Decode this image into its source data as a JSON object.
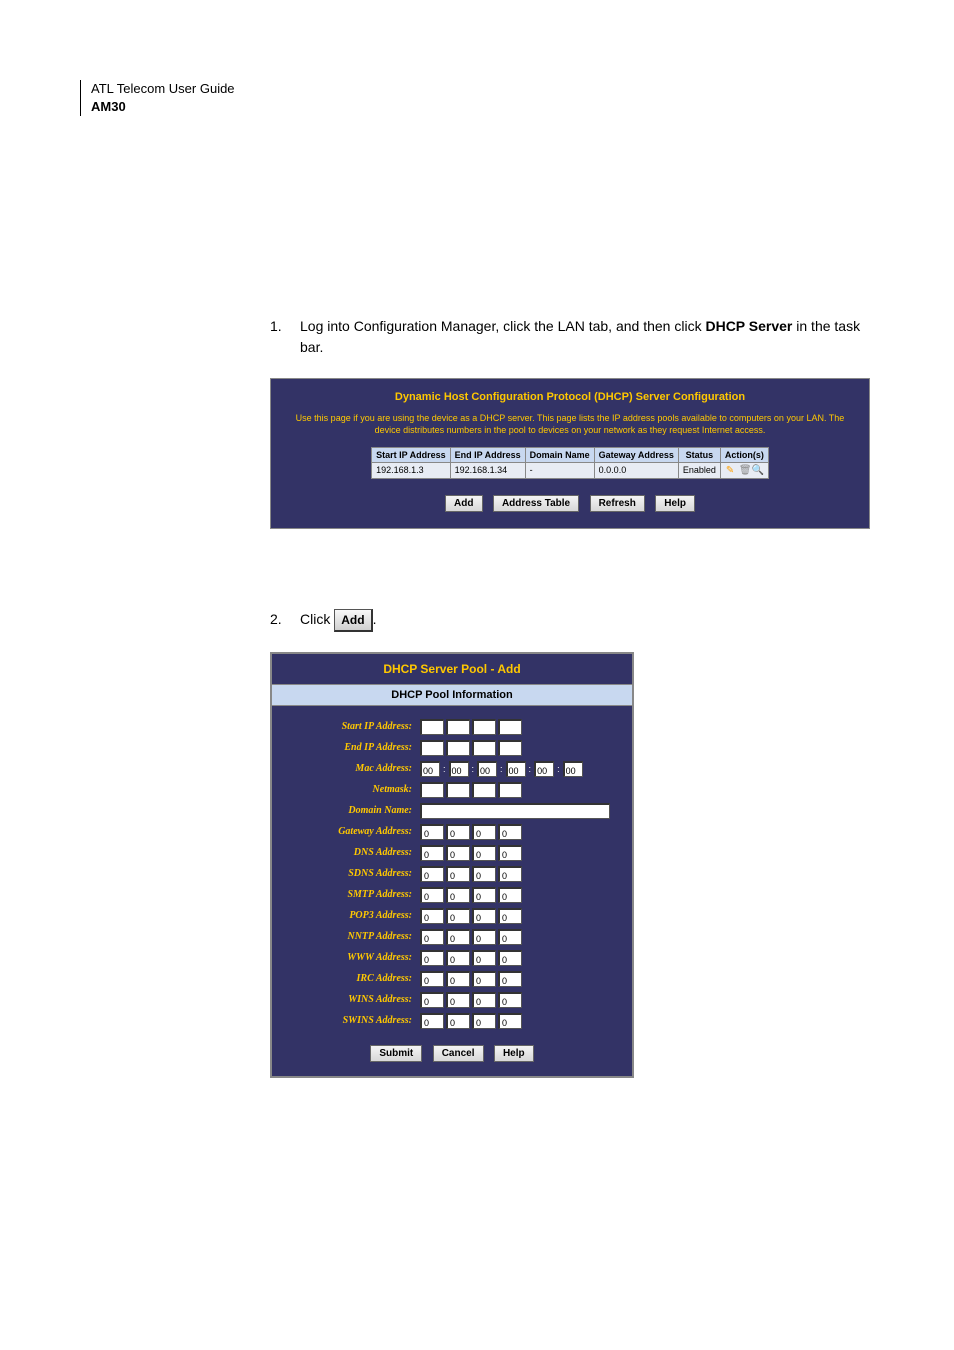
{
  "header": {
    "line1": "ATL Telecom User Guide",
    "line2": "AM30"
  },
  "step1": {
    "num": "1.",
    "text_pre": "Log into Configuration Manager, click the LAN tab, and then click ",
    "text_bold": "DHCP Server",
    "text_post": " in the task bar."
  },
  "shot1": {
    "title": "Dynamic Host Configuration Protocol (DHCP) Server Configuration",
    "desc": "Use this page if you are using the device as a DHCP server. This page lists the IP address pools available to computers on your LAN. The device distributes numbers in the pool to devices on your network as they request Internet access.",
    "cols": [
      "Start IP Address",
      "End IP Address",
      "Domain Name",
      "Gateway Address",
      "Status",
      "Action(s)"
    ],
    "row": [
      "192.168.1.3",
      "192.168.1.34",
      "-",
      "0.0.0.0",
      "Enabled"
    ],
    "buttons": [
      "Add",
      "Address Table",
      "Refresh",
      "Help"
    ]
  },
  "step2": {
    "num": "2.",
    "text_pre": "Click ",
    "add_label": "Add",
    "text_post": "."
  },
  "shot2": {
    "title": "DHCP Server Pool - Add",
    "subtitle": "DHCP Pool Information",
    "mac_val": "00",
    "zero": "0",
    "labels": {
      "start_ip": "Start IP Address:",
      "end_ip": "End IP Address:",
      "mac": "Mac Address:",
      "netmask": "Netmask:",
      "domain": "Domain Name:",
      "gateway": "Gateway Address:",
      "dns": "DNS Address:",
      "sdns": "SDNS Address:",
      "smtp": "SMTP Address:",
      "pop3": "POP3 Address:",
      "nntp": "NNTP Address:",
      "www": "WWW Address:",
      "irc": "IRC Address:",
      "wins": "WINS Address:",
      "swins": "SWINS Address:"
    },
    "buttons": [
      "Submit",
      "Cancel",
      "Help"
    ]
  }
}
